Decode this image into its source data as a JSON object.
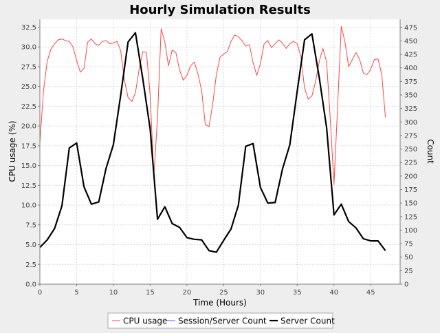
{
  "chart_data": {
    "type": "line",
    "title": "Hourly Simulation Results",
    "xlabel": "Time (Hours)",
    "ylabel_left": "CPU usage (%)",
    "ylabel_right": "Count",
    "xlim": [
      0,
      49
    ],
    "ylim_left": [
      0,
      33.5
    ],
    "ylim_right": [
      0,
      490
    ],
    "x_ticks": [
      0,
      5,
      10,
      15,
      20,
      25,
      30,
      35,
      40,
      45
    ],
    "x_tick_labels": [
      "0",
      "5",
      "10",
      "15",
      "20",
      "25",
      "30",
      "35",
      "40",
      "45"
    ],
    "y_left_ticks": [
      0,
      2.5,
      5,
      7.5,
      10,
      12.5,
      15,
      17.5,
      20,
      22.5,
      25,
      27.5,
      30,
      32.5
    ],
    "y_left_tick_labels": [
      "0.0",
      "2.5",
      "5.0",
      "7.5",
      "10.0",
      "12.5",
      "15.0",
      "17.5",
      "20.0",
      "22.5",
      "25.0",
      "27.5",
      "30.0",
      "32.5"
    ],
    "y_right_ticks": [
      0,
      25,
      50,
      75,
      100,
      125,
      150,
      175,
      200,
      225,
      250,
      275,
      300,
      325,
      350,
      375,
      400,
      425,
      450,
      475
    ],
    "y_right_tick_labels": [
      "0",
      "25",
      "50",
      "75",
      "100",
      "125",
      "150",
      "175",
      "200",
      "225",
      "250",
      "275",
      "300",
      "325",
      "350",
      "375",
      "400",
      "425",
      "450",
      "475"
    ],
    "grid": true,
    "legend_position": "bottom",
    "series": [
      {
        "name": "CPU usage",
        "axis": "left",
        "color": "#ff4444",
        "x": [
          0,
          0.5,
          1,
          1.5,
          2,
          2.5,
          3,
          3.5,
          4,
          4.5,
          5,
          5.5,
          6,
          6.5,
          7,
          7.5,
          8,
          8.5,
          9,
          9.5,
          10,
          10.5,
          11,
          11.5,
          12,
          12.5,
          13,
          13.5,
          14,
          14.5,
          15,
          15.5,
          16,
          16.5,
          17,
          17.5,
          18,
          18.5,
          19,
          19.5,
          20,
          20.5,
          21,
          21.5,
          22,
          22.5,
          23,
          23.5,
          24,
          24.5,
          25,
          25.5,
          26,
          26.5,
          27,
          27.5,
          28,
          28.5,
          29,
          29.5,
          30,
          30.5,
          31,
          31.5,
          32,
          32.5,
          33,
          33.5,
          34,
          34.5,
          35,
          35.5,
          36,
          36.5,
          37,
          37.5,
          38,
          38.5,
          39,
          39.5,
          40,
          40.5,
          41,
          41.5,
          42,
          42.5,
          43,
          43.5,
          44,
          44.5,
          45,
          45.5,
          46,
          46.5,
          47
        ],
        "y": [
          17.8,
          24.5,
          28.2,
          29.7,
          30.4,
          30.9,
          31.0,
          30.8,
          30.7,
          30.0,
          28.3,
          26.8,
          27.3,
          30.6,
          31.0,
          30.4,
          30.2,
          30.7,
          30.8,
          30.4,
          30.5,
          30.7,
          29.5,
          25.8,
          23.6,
          23.1,
          24.2,
          27.2,
          29.4,
          29.3,
          23.9,
          13.7,
          21.0,
          32.3,
          30.6,
          27.6,
          29.6,
          29.3,
          27.1,
          25.8,
          26.4,
          27.6,
          28.1,
          26.6,
          24.5,
          20.2,
          19.9,
          22.7,
          26.5,
          28.7,
          29.1,
          29.4,
          30.7,
          31.5,
          31.3,
          30.8,
          30.1,
          30.3,
          28.0,
          26.4,
          27.9,
          30.4,
          30.8,
          29.9,
          30.4,
          30.9,
          30.5,
          29.8,
          30.4,
          30.7,
          30.4,
          28.8,
          24.8,
          23.4,
          23.8,
          25.6,
          28.2,
          29.8,
          28.1,
          20.9,
          12.6,
          22.5,
          32.6,
          30.6,
          27.5,
          28.4,
          29.3,
          28.4,
          26.7,
          26.5,
          27.2,
          28.4,
          28.5,
          26.5,
          21.1
        ]
      },
      {
        "name": "Session/Server Count",
        "axis": "right",
        "color": "#5555ff",
        "x": [
          0,
          47
        ],
        "y": [
          0,
          0
        ]
      },
      {
        "name": "Server Count",
        "axis": "right",
        "color": "#000000",
        "x": [
          0,
          1,
          2,
          3,
          4,
          5,
          6,
          7,
          8,
          9,
          10,
          11,
          12,
          13,
          14,
          15,
          16,
          17,
          18,
          19,
          20,
          21,
          22,
          23,
          24,
          25,
          26,
          27,
          28,
          29,
          30,
          31,
          32,
          33,
          34,
          35,
          36,
          37,
          38,
          39,
          40,
          41,
          42,
          43,
          44,
          45,
          46,
          47
        ],
        "y": [
          68,
          82,
          103,
          145,
          252,
          261,
          180,
          148,
          152,
          214,
          258,
          350,
          448,
          465,
          380,
          287,
          120,
          143,
          112,
          105,
          86,
          83,
          82,
          62,
          59,
          81,
          102,
          146,
          255,
          260,
          179,
          150,
          151,
          213,
          258,
          357,
          452,
          463,
          382,
          289,
          128,
          148,
          116,
          104,
          84,
          80,
          80,
          62
        ]
      }
    ]
  }
}
